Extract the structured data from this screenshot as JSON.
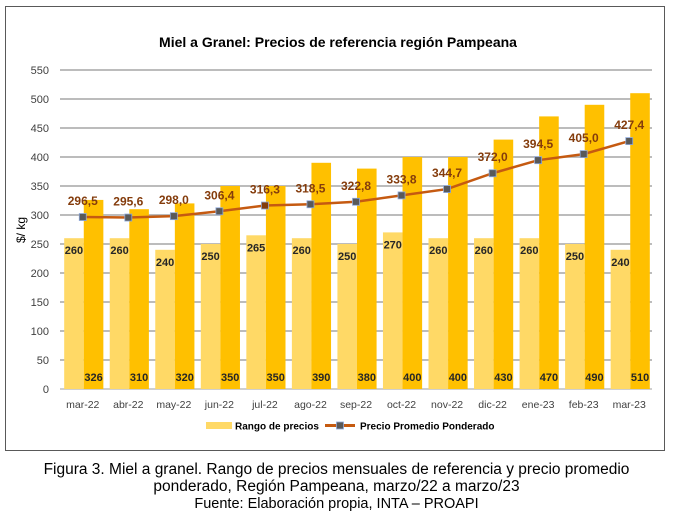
{
  "chart_data": {
    "type": "bar",
    "title": "Miel a Granel: Precios de referencia región Pampeana",
    "xlabel": "",
    "ylabel": "$/ kg",
    "ylim": [
      0,
      550
    ],
    "yticks": [
      0,
      50,
      100,
      150,
      200,
      250,
      300,
      350,
      400,
      450,
      500,
      550
    ],
    "grid": true,
    "legend_position": "bottom",
    "categories": [
      "mar-22",
      "abr-22",
      "may-22",
      "jun-22",
      "jul-22",
      "ago-22",
      "sep-22",
      "oct-22",
      "nov-22",
      "dic-22",
      "ene-23",
      "feb-23",
      "mar-23"
    ],
    "series": [
      {
        "name": "Rango de precios (mínimo)",
        "kind": "bar",
        "color": "#FFD966",
        "values": [
          260,
          260,
          240,
          250,
          265,
          260,
          250,
          270,
          260,
          260,
          260,
          250,
          240
        ],
        "labels": [
          "260",
          "260",
          "240",
          "250",
          "265",
          "260",
          "250",
          "270",
          "260",
          "260",
          "260",
          "250",
          "240"
        ]
      },
      {
        "name": "Rango de precios (máximo)",
        "kind": "bar",
        "color": "#FFC000",
        "values": [
          326,
          310,
          320,
          350,
          350,
          390,
          380,
          400,
          400,
          430,
          470,
          490,
          510
        ],
        "labels": [
          "326",
          "310",
          "320",
          "350",
          "350",
          "390",
          "380",
          "400",
          "400",
          "430",
          "470",
          "490",
          "510"
        ]
      },
      {
        "name": "Precio Promedio Ponderado",
        "kind": "line",
        "color": "#C55A11",
        "marker_color": "#595959",
        "values": [
          296.5,
          295.6,
          298.0,
          306.4,
          316.3,
          318.5,
          322.8,
          333.8,
          344.7,
          372.0,
          394.5,
          405.0,
          427.4
        ],
        "labels": [
          "296,5",
          "295,6",
          "298,0",
          "306,4",
          "316,3",
          "318,5",
          "322,8",
          "333,8",
          "344,7",
          "372,0",
          "394,5",
          "405,0",
          "427,4"
        ]
      }
    ],
    "legend": [
      {
        "label": "Rango de precios",
        "color": "#FFD966"
      },
      {
        "label": "Precio Promedio Ponderado",
        "color": "#C55A11"
      }
    ]
  },
  "caption": {
    "line1": "Figura 3. Miel a granel. Rango de precios mensuales de referencia y precio promedio",
    "line2": "ponderado, Región Pampeana, marzo/22 a marzo/23",
    "source": "Fuente: Elaboración propia, INTA – PROAPI"
  }
}
